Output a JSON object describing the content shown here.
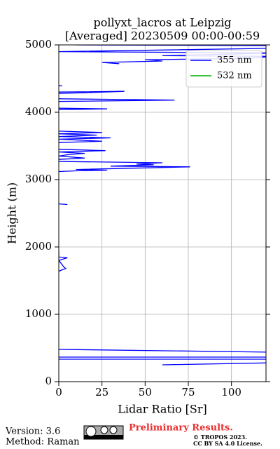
{
  "chart_data": {
    "type": "line",
    "title": "pollyxt_lacros at Leipzig",
    "subtitle": "[Averaged] 20230509 00:00-00:59",
    "x_label": "Lidar Ratio [Sr]",
    "y_label": "Height (m)",
    "xlim": [
      0,
      120
    ],
    "xticks": [
      0,
      25,
      50,
      75,
      100
    ],
    "ylim": [
      0,
      5000
    ],
    "yticks": [
      0,
      1000,
      2000,
      3000,
      4000,
      5000
    ],
    "grid": true,
    "legend": "upper right",
    "y": [
      5000,
      4990,
      4950,
      4900,
      4880,
      4840,
      4830,
      4800,
      4780,
      4760,
      4740,
      4720,
      4600,
      4400,
      4390,
      4350,
      4300,
      4310,
      4290,
      4280,
      4250,
      4200,
      4180,
      4160,
      4100,
      4060,
      4050,
      4040,
      3900,
      3720,
      3700,
      3690,
      3680,
      3660,
      3640,
      3620,
      3600,
      3570,
      3550,
      3500,
      3450,
      3430,
      3410,
      3390,
      3370,
      3350,
      3320,
      3300,
      3280,
      3270,
      3250,
      3230,
      3220,
      3200,
      3190,
      3150,
      3140,
      3130,
      3120,
      3000,
      2640,
      2630,
      2500,
      1940,
      1850,
      1840,
      1800,
      1700,
      1680,
      1660,
      1640,
      1000,
      479,
      437,
      400,
      365,
      365,
      350,
      333,
      333,
      300,
      250,
      280
    ],
    "series": [
      {
        "name": "355 nm",
        "color": "#0000ff",
        "values": [
          10,
          125,
          125,
          0,
          125,
          60,
          125,
          110,
          50,
          60,
          25,
          35,
          null,
          0,
          2,
          null,
          0,
          38,
          15,
          0,
          null,
          0,
          67,
          0,
          null,
          0,
          28,
          0,
          null,
          0,
          25,
          12,
          0,
          22,
          0,
          30,
          0,
          25,
          0,
          null,
          0,
          27,
          0,
          15,
          5,
          0,
          15,
          0,
          null,
          0,
          60,
          45,
          55,
          30,
          76,
          10,
          28,
          10,
          0,
          null,
          0,
          5,
          null,
          0,
          0,
          5,
          0,
          3,
          4,
          2,
          0,
          null,
          0,
          125,
          null,
          0,
          125,
          null,
          125,
          0,
          null,
          60,
          125
        ]
      },
      {
        "name": "532 nm",
        "color": "#00b000",
        "values": [
          null,
          null,
          null,
          null,
          null,
          null,
          null,
          null,
          null,
          null,
          null,
          null,
          null,
          null,
          null,
          null,
          null,
          null,
          null,
          null,
          null,
          null,
          null,
          null,
          null,
          null,
          null,
          null,
          null,
          null,
          null,
          null,
          null,
          null,
          null,
          null,
          null,
          null,
          null,
          null,
          null,
          null,
          null,
          null,
          null,
          null,
          null,
          null,
          null,
          null,
          null,
          null,
          null,
          null,
          null,
          null,
          null,
          null,
          null,
          null,
          null,
          null,
          null,
          null,
          null,
          null,
          null,
          null,
          null,
          null,
          null,
          null,
          null,
          null,
          null,
          null,
          null,
          null,
          null,
          null,
          null,
          null,
          null
        ]
      }
    ]
  },
  "footer": {
    "version": "Version: 3.6",
    "method": "Method: Raman",
    "status": "Preliminary Results.",
    "copyright": "© TROPOS 2023.",
    "license": "CC BY SA 4.0 License."
  }
}
